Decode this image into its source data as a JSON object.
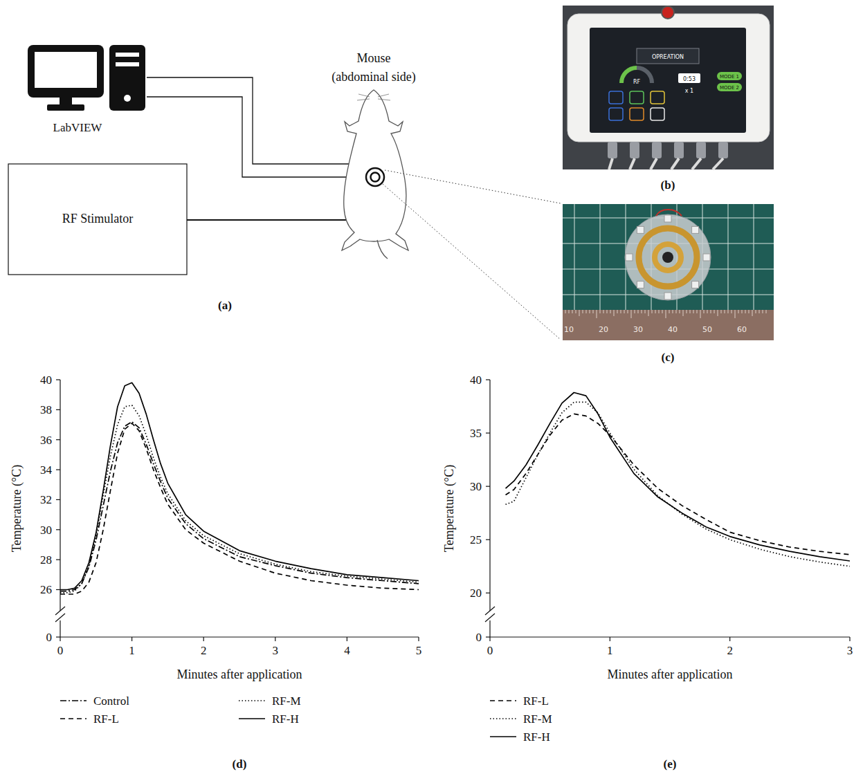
{
  "diagram": {
    "label": "(a)",
    "computer_label": "LabVIEW",
    "stimulator_label": "RF Stimulator",
    "mouse_label": [
      "Mouse",
      "(abdominal side)"
    ]
  },
  "photo_device": {
    "label": "(b)",
    "screen_title": "OPREATION",
    "screen_channel": "RF",
    "screen_time": "0:53",
    "screen_count": "x 1",
    "screen_modes": [
      "MODE 1",
      "MODE 2"
    ]
  },
  "photo_electrode": {
    "label": "(c)",
    "ruler_ticks": [
      10,
      20,
      30,
      40,
      50,
      60
    ]
  },
  "chart_data": [
    {
      "type": "line",
      "label": "(d)",
      "x": [
        0,
        0.1,
        0.2,
        0.3,
        0.4,
        0.5,
        0.6,
        0.7,
        0.8,
        0.9,
        1.0,
        1.1,
        1.2,
        1.3,
        1.4,
        1.5,
        1.75,
        2,
        2.5,
        3,
        3.5,
        4,
        4.5,
        5
      ],
      "xlim": [
        0,
        5
      ],
      "xticks": [
        0,
        1,
        2,
        3,
        4,
        5
      ],
      "ylim": [
        0,
        40
      ],
      "ybreak": [
        0,
        24.5
      ],
      "yticks": [
        0,
        26,
        28,
        30,
        32,
        34,
        36,
        38,
        40
      ],
      "xlabel": "Minutes after application",
      "ylabel": "Temperature (°C)",
      "grid": false,
      "legend": "bottom",
      "series": [
        {
          "name": "Control",
          "color": "#000000",
          "line_style": "dash-dot",
          "values": [
            25.9,
            25.9,
            26.0,
            26.4,
            27.5,
            29.3,
            31.6,
            33.9,
            35.8,
            36.9,
            37.2,
            36.8,
            35.7,
            34.4,
            33.2,
            32.1,
            30.4,
            29.4,
            28.2,
            27.6,
            27.1,
            26.8,
            26.6,
            26.4
          ]
        },
        {
          "name": "RF-L",
          "color": "#000000",
          "line_style": "dashed",
          "values": [
            25.7,
            25.7,
            25.7,
            25.9,
            26.5,
            27.8,
            30.0,
            32.6,
            35.1,
            36.7,
            37.1,
            36.6,
            35.4,
            34.0,
            32.8,
            31.7,
            30.0,
            29.1,
            27.9,
            27.1,
            26.6,
            26.3,
            26.1,
            26.0
          ]
        },
        {
          "name": "RF-M",
          "color": "#000000",
          "line_style": "dotted",
          "values": [
            25.8,
            25.8,
            25.9,
            26.4,
            27.6,
            29.6,
            32.3,
            34.9,
            37.0,
            38.2,
            38.3,
            37.6,
            36.3,
            34.8,
            33.5,
            32.4,
            30.6,
            29.6,
            28.4,
            27.7,
            27.2,
            26.9,
            26.7,
            26.5
          ]
        },
        {
          "name": "RF-H",
          "color": "#000000",
          "line_style": "solid",
          "values": [
            26.0,
            26.0,
            26.1,
            26.6,
            27.8,
            29.8,
            32.6,
            35.6,
            38.2,
            39.6,
            39.8,
            39.1,
            37.7,
            36.0,
            34.4,
            33.1,
            31.0,
            29.9,
            28.6,
            27.9,
            27.4,
            27.0,
            26.8,
            26.6
          ]
        }
      ]
    },
    {
      "type": "line",
      "label": "(e)",
      "x": [
        0.13,
        0.2,
        0.3,
        0.4,
        0.5,
        0.6,
        0.7,
        0.8,
        0.9,
        1.0,
        1.2,
        1.4,
        1.6,
        1.8,
        2.0,
        2.25,
        2.5,
        2.75,
        3.0
      ],
      "xlim": [
        0,
        3
      ],
      "xticks": [
        0,
        1,
        2,
        3
      ],
      "ylim": [
        0,
        40
      ],
      "ybreak": [
        0,
        18.2
      ],
      "yticks": [
        0,
        20,
        25,
        30,
        35,
        40
      ],
      "xlabel": "Minutes after application",
      "ylabel": "Temperature (°C)",
      "grid": false,
      "legend": "bottom",
      "series": [
        {
          "name": "RF-L",
          "color": "#000000",
          "line_style": "dashed",
          "values": [
            29.2,
            29.7,
            31.2,
            33.0,
            34.8,
            36.2,
            36.8,
            36.6,
            35.9,
            34.8,
            32.0,
            29.8,
            28.2,
            26.9,
            25.7,
            24.9,
            24.3,
            23.9,
            23.6
          ]
        },
        {
          "name": "RF-M",
          "color": "#000000",
          "line_style": "dotted",
          "values": [
            28.3,
            28.6,
            30.8,
            33.0,
            35.0,
            36.9,
            37.9,
            37.9,
            36.9,
            35.0,
            31.6,
            29.1,
            27.4,
            26.0,
            25.0,
            24.1,
            23.4,
            22.9,
            22.5
          ]
        },
        {
          "name": "RF-H",
          "color": "#000000",
          "line_style": "solid",
          "values": [
            29.8,
            30.5,
            32.0,
            33.9,
            35.9,
            37.8,
            38.8,
            38.5,
            36.8,
            34.6,
            31.2,
            29.0,
            27.5,
            26.2,
            25.3,
            24.5,
            23.9,
            23.4,
            23.0
          ]
        }
      ]
    }
  ]
}
